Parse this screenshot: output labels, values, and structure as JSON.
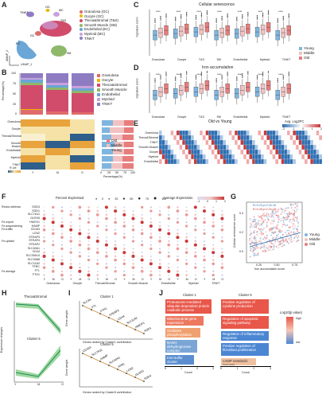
{
  "panels": {
    "A": {
      "label": "A",
      "xlabel": "UMAP_1",
      "ylabel": "UMAP_2",
      "clusters": [
        {
          "name": "T/NKT",
          "color": "#8e7cc3"
        },
        {
          "name": "OO",
          "color": "#e6b800"
        },
        {
          "name": "MC",
          "color": "#c9a0dc"
        },
        {
          "name": "T&S",
          "color": "#d14b6b"
        },
        {
          "name": "GC",
          "color": "#e06b6b"
        },
        {
          "name": "EC",
          "color": "#6aa6d6"
        },
        {
          "name": "SM",
          "color": "#8fb86b"
        }
      ],
      "legend": [
        {
          "text": "Granulosa (GC)",
          "color": "#e06b6b"
        },
        {
          "text": "Oocyte (OC)",
          "color": "#e6b800"
        },
        {
          "text": "Theca&Stromal (T&S)",
          "color": "#d14b6b"
        },
        {
          "text": "Smooth Muscle (SM)",
          "color": "#8fb86b"
        },
        {
          "text": "Endothelial (EC)",
          "color": "#6aa6d6"
        },
        {
          "text": "Myeloid (MC)",
          "color": "#c9a0dc"
        },
        {
          "text": "T/NKT",
          "color": "#8e7cc3"
        }
      ]
    },
    "B": {
      "label": "B",
      "ylabel": "Percentage(%)",
      "xlabel": "Percentage(%)",
      "roe_label": "R o/e",
      "ticks": [
        "100",
        "75",
        "50",
        "25",
        "0"
      ],
      "legend": [
        {
          "text": "Granulosa",
          "color": "#e06b6b"
        },
        {
          "text": "Oocyte",
          "color": "#e6b800"
        },
        {
          "text": "Theca&Stromal",
          "color": "#d14b6b"
        },
        {
          "text": "Smooth Muscle",
          "color": "#8fb86b"
        },
        {
          "text": "Endothelial",
          "color": "#6aa6d6"
        },
        {
          "text": "Myeloid",
          "color": "#c9a0dc"
        },
        {
          "text": "T/NKT",
          "color": "#8e7cc3"
        }
      ],
      "rows": [
        "Granulosa",
        "Oocyte",
        "Theca&Stromal",
        "Smooth Muscle",
        "Endothelial",
        "Myeloid",
        "T/NKT"
      ],
      "cols": [
        "Y",
        "M",
        "O"
      ],
      "age_legend": [
        {
          "text": "Old",
          "color": "#e87d7d"
        },
        {
          "text": "Middle",
          "color": "#f2c2c2"
        },
        {
          "text": "Young",
          "color": "#7fb6e0"
        }
      ],
      "xticks": [
        "0",
        "25",
        "50",
        "75",
        "100"
      ]
    },
    "C": {
      "label": "C",
      "title": "Cellular senescence",
      "ylabel": "Signature score",
      "groups": [
        "Granulose",
        "Oocyte",
        "T&S",
        "SM",
        "Endothelial",
        "Myeloid",
        "T/NKT"
      ],
      "legend": [
        {
          "text": "Young",
          "color": "#7fb6e0"
        },
        {
          "text": "Middle",
          "color": "#f2c2c2"
        },
        {
          "text": "Old",
          "color": "#e87d7d"
        }
      ]
    },
    "D": {
      "label": "D",
      "title": "Iron accumulation",
      "ylabel": "Signature score",
      "groups": [
        "Granulose",
        "Oocyte",
        "T&S",
        "SM",
        "Endothelial",
        "Myeloid",
        "T/NKT"
      ]
    },
    "E": {
      "label": "E",
      "title": "Old vs Young",
      "legend_title": "Avg. Log2FC",
      "legend_ticks": [
        "-2",
        "-1",
        "0",
        "1",
        "2"
      ],
      "rows": [
        "Granulosa",
        "Theca&Stromal",
        "T/NKT",
        "Smooth Muscle",
        "Oocyte",
        "Myeloid",
        "Endothelial"
      ]
    },
    "F": {
      "label": "F",
      "pct_title": "Percent Expressed",
      "pct_ticks": [
        "0",
        "25",
        "50",
        "75",
        "100"
      ],
      "avg_title": "Average Expression",
      "avg_ticks": [
        "-1",
        "0",
        "1",
        "2"
      ],
      "genes": [
        "SOD3",
        "SOD1",
        "SLC7A11",
        "GLRX5",
        "HMOX1",
        "HAMP",
        "CD163",
        "LCN2",
        "STEAP3",
        "STEAP4",
        "STEAP2",
        "SLC40A1",
        "CD44",
        "SLC39A14",
        "SLC39A8",
        "SLC11A2",
        "TFRC",
        "FTL",
        "FTH1"
      ],
      "categories": [
        {
          "text": "Redox defense",
          "top": 0
        },
        {
          "text": "Fe-export",
          "top": 4
        },
        {
          "text": "Fe-sequestering",
          "top": 5
        },
        {
          "text": "Fe-traffic",
          "top": 6
        },
        {
          "text": "Fe-uptake",
          "top": 9
        },
        {
          "text": "Fe-storage",
          "top": 17
        }
      ],
      "groups": [
        "Granulosa",
        "Oocyte",
        "Theca&Stromal",
        "Smooth Muscle",
        "Endothelial",
        "Myeloid",
        "T/NKT"
      ],
      "cols": [
        "Y",
        "M",
        "O"
      ]
    },
    "G": {
      "label": "G",
      "xlabel": "Iron accumulation score",
      "ylabel": "Cellular senescence score",
      "r1": "R=0.22,p<2.2e-16",
      "r2": "R=0.49,p<2.2e-16",
      "legend": [
        {
          "text": "Young",
          "color": "#7fb6e0"
        },
        {
          "text": "Middle",
          "color": "#f2c2c2"
        },
        {
          "text": "Old",
          "color": "#e87d7d"
        }
      ],
      "xticks": [
        "0.25",
        "0.50",
        "0.75"
      ],
      "yticks": [
        "0.0",
        "0.2",
        "0.4"
      ]
    },
    "H": {
      "label": "H",
      "ylabel": "Expression changes",
      "sub1": "Theca&Stromal",
      "sub2": "Cluster 5",
      "xticks": [
        "Y",
        "M",
        "O"
      ]
    },
    "I": {
      "label": "I",
      "sub1": "Cluster 1",
      "sub2": "Cluster 5",
      "ylabel": "Gene weight",
      "x1": "Genes ranked by Cluster1 contribution",
      "x2": "Genes ranked by Cluster5 contribution",
      "genes1": [
        "SLC39A14",
        "FTL",
        "FTH1",
        "STEAP3",
        "CD44",
        "SLC11A2",
        "HMOX1",
        "SOD1"
      ],
      "genes2": [
        "CD163",
        "SLC7A11",
        "HAMP",
        "SLC40A1",
        "TFRC",
        "LCN2",
        "GLRX5",
        "SOD3"
      ]
    },
    "J": {
      "label": "J",
      "sub1": "Cluster 1",
      "sub2": "Cluster 5",
      "xlabel": "Count",
      "legend_title": "Log10(p value)",
      "legend_high": "high",
      "legend_low": "low",
      "xticks1": [
        "0",
        "1",
        "2",
        "3"
      ],
      "xticks2": [
        "0",
        "1",
        "2",
        "3"
      ],
      "bars1": [
        {
          "text": "Proteasome-mediated ubiquitin-dependent protein catabolic process",
          "color": "#e8574a"
        },
        {
          "text": "Mitochondrial gene expression",
          "color": "#ec7860"
        },
        {
          "text": "Oxidative phosphorylation",
          "color": "#f0a070"
        },
        {
          "text": "NADH dehydrogenase complex assembly",
          "color": "#7aa6d6"
        },
        {
          "text": "Iron-sulfur cluster assembly",
          "color": "#5b8ed0"
        }
      ],
      "bars2": [
        {
          "text": "Positive regulation of cytokine production",
          "color": "#e8574a"
        },
        {
          "text": "Regulation of apoptotic signaling pathway",
          "color": "#e8574a"
        },
        {
          "text": "Regulation of inflammatory response",
          "color": "#4b86d3"
        },
        {
          "text": "Positive regulation of fibroblast proliferation",
          "color": "#4b86d3"
        },
        {
          "text": "cAMP metabolic process",
          "color": "#f0c0a0"
        }
      ]
    }
  }
}
